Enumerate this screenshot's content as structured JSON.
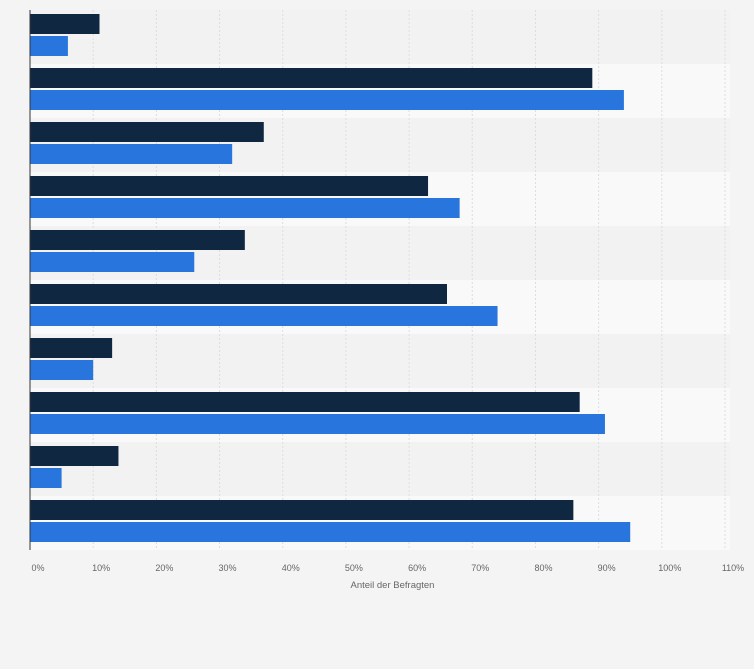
{
  "chart_data": {
    "type": "bar",
    "orientation": "horizontal",
    "title": "",
    "xlabel": "Anteil der Befragten",
    "ylabel": "",
    "xlim": [
      0,
      110
    ],
    "xticks": [
      "0%",
      "10%",
      "20%",
      "30%",
      "40%",
      "50%",
      "60%",
      "70%",
      "80%",
      "90%",
      "100%",
      "110%"
    ],
    "grid": true,
    "legend": "none",
    "categories": [
      "",
      "",
      "",
      "",
      "",
      "",
      "",
      "",
      "",
      ""
    ],
    "series": [
      {
        "color": "#0f2741",
        "values": [
          11,
          89,
          37,
          63,
          34,
          66,
          13,
          87,
          14,
          86
        ]
      },
      {
        "color": "#2876dd",
        "values": [
          6,
          94,
          32,
          68,
          26,
          74,
          10,
          91,
          5,
          95
        ]
      }
    ],
    "colors": {
      "band_a": "#f2f2f2",
      "band_b": "#f9f9f9",
      "grid": "#dddddd",
      "axis": "#333333"
    }
  }
}
